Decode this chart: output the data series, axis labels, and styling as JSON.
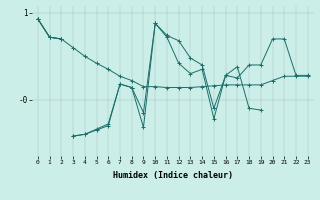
{
  "xlabel": "Humidex (Indice chaleur)",
  "background_color": "#cceee8",
  "line_color": "#1a6e6a",
  "grid_color": "#999999",
  "x_values": [
    0,
    1,
    2,
    3,
    4,
    5,
    6,
    7,
    8,
    9,
    10,
    11,
    12,
    13,
    14,
    15,
    16,
    17,
    18,
    19,
    20,
    21,
    22,
    23
  ],
  "series": [
    [
      0.93,
      0.72,
      0.7,
      0.6,
      0.5,
      0.42,
      0.35,
      0.27,
      0.22,
      0.15,
      0.15,
      0.14,
      0.14,
      0.14,
      0.15,
      0.16,
      0.17,
      0.17,
      0.17,
      0.17,
      0.22,
      0.27,
      0.27,
      0.27
    ],
    [
      0.93,
      0.72,
      0.7,
      null,
      null,
      null,
      null,
      null,
      null,
      null,
      null,
      null,
      null,
      null,
      null,
      null,
      null,
      null,
      null,
      null,
      null,
      null,
      null,
      null
    ],
    [
      0.93,
      0.72,
      0.7,
      null,
      null,
      null,
      null,
      null,
      null,
      null,
      null,
      null,
      null,
      null,
      null,
      null,
      null,
      null,
      null,
      null,
      null,
      null,
      null,
      null
    ],
    [
      null,
      null,
      null,
      -0.42,
      -0.4,
      -0.35,
      -0.3,
      0.18,
      0.14,
      -0.15,
      0.88,
      0.74,
      0.68,
      0.48,
      0.4,
      -0.1,
      0.28,
      0.25,
      0.4,
      0.4,
      0.7,
      0.7,
      0.28,
      0.28
    ],
    [
      null,
      null,
      null,
      -0.42,
      -0.4,
      -0.34,
      -0.28,
      0.18,
      0.14,
      -0.32,
      0.88,
      0.72,
      0.42,
      0.3,
      0.35,
      -0.22,
      0.28,
      0.38,
      -0.1,
      -0.12,
      null,
      null,
      null,
      null
    ]
  ],
  "ylim": [
    -0.65,
    1.08
  ],
  "xlim": [
    -0.5,
    23.5
  ],
  "figsize": [
    3.2,
    2.0
  ],
  "dpi": 100
}
